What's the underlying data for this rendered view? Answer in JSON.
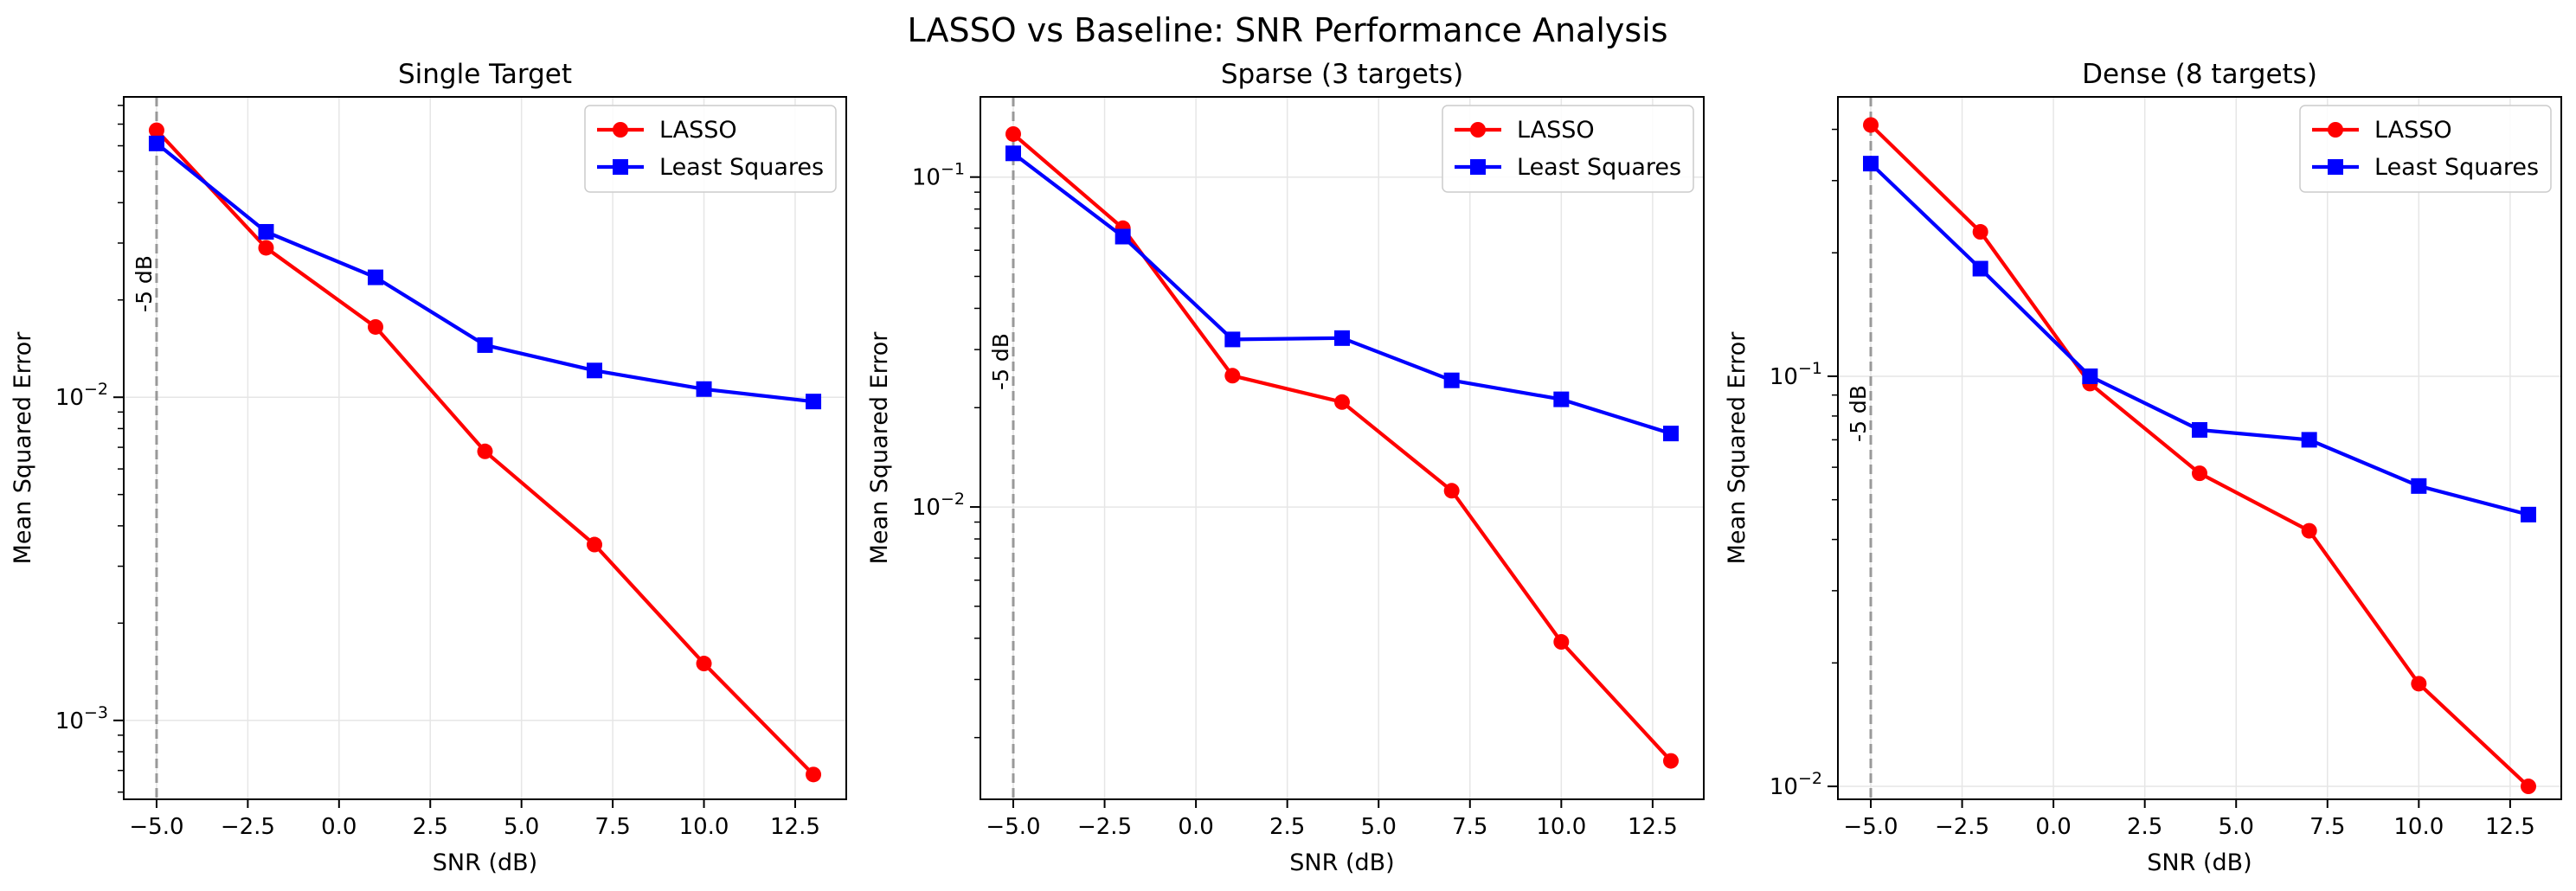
{
  "suptitle": "LASSO vs Baseline: SNR Performance Analysis",
  "colors": {
    "lasso": "#ff0000",
    "least_squares": "#0000ff",
    "ref_line": "#999999",
    "grid": "#e6e6e6"
  },
  "chart_data": [
    {
      "type": "line",
      "title": "Single Target",
      "xlabel": "SNR (dB)",
      "ylabel": "Mean Squared Error",
      "yscale": "log",
      "xlim": [
        -5.9,
        13.9
      ],
      "ylim": [
        0.00057,
        0.085
      ],
      "xticks": [
        -5.0,
        -2.5,
        0.0,
        2.5,
        5.0,
        7.5,
        10.0,
        12.5
      ],
      "xtick_labels": [
        "−5.0",
        "−2.5",
        "0.0",
        "2.5",
        "5.0",
        "7.5",
        "10.0",
        "12.5"
      ],
      "yticks": [
        {
          "value": 0.01,
          "base": "10",
          "exp": "−2"
        },
        {
          "value": 0.001,
          "base": "10",
          "exp": "−3"
        }
      ],
      "grid": true,
      "legend": "top-right",
      "ref_line": {
        "x": -5,
        "label": "-5 dB"
      },
      "x": [
        -5,
        -2,
        1,
        4,
        7,
        10,
        13
      ],
      "series": [
        {
          "name": "LASSO",
          "color": "#ff0000",
          "marker": "circle",
          "values": [
            0.067,
            0.029,
            0.0165,
            0.0068,
            0.0035,
            0.0015,
            0.00068
          ]
        },
        {
          "name": "Least Squares",
          "color": "#0000ff",
          "marker": "square",
          "values": [
            0.061,
            0.0325,
            0.0235,
            0.0145,
            0.0121,
            0.0106,
            0.0097
          ]
        }
      ]
    },
    {
      "type": "line",
      "title": "Sparse (3 targets)",
      "xlabel": "SNR (dB)",
      "ylabel": "Mean Squared Error",
      "yscale": "log",
      "xlim": [
        -5.9,
        13.9
      ],
      "ylim": [
        0.0013,
        0.175
      ],
      "xticks": [
        -5.0,
        -2.5,
        0.0,
        2.5,
        5.0,
        7.5,
        10.0,
        12.5
      ],
      "xtick_labels": [
        "−5.0",
        "−2.5",
        "0.0",
        "2.5",
        "5.0",
        "7.5",
        "10.0",
        "12.5"
      ],
      "yticks": [
        {
          "value": 0.1,
          "base": "10",
          "exp": "−1"
        },
        {
          "value": 0.01,
          "base": "10",
          "exp": "−2"
        }
      ],
      "grid": true,
      "legend": "top-right",
      "ref_line": {
        "x": -5,
        "label": "-5 dB"
      },
      "x": [
        -5,
        -2,
        1,
        4,
        7,
        10,
        13
      ],
      "series": [
        {
          "name": "LASSO",
          "color": "#ff0000",
          "marker": "circle",
          "values": [
            0.135,
            0.07,
            0.025,
            0.0208,
            0.0112,
            0.0039,
            0.0017
          ]
        },
        {
          "name": "Least Squares",
          "color": "#0000ff",
          "marker": "square",
          "values": [
            0.118,
            0.066,
            0.0322,
            0.0325,
            0.0242,
            0.0212,
            0.0167
          ]
        }
      ]
    },
    {
      "type": "line",
      "title": "Dense (8 targets)",
      "xlabel": "SNR (dB)",
      "ylabel": "Mean Squared Error",
      "yscale": "log",
      "xlim": [
        -5.9,
        13.9
      ],
      "ylim": [
        0.0093,
        0.48
      ],
      "xticks": [
        -5.0,
        -2.5,
        0.0,
        2.5,
        5.0,
        7.5,
        10.0,
        12.5
      ],
      "xtick_labels": [
        "−5.0",
        "−2.5",
        "0.0",
        "2.5",
        "5.0",
        "7.5",
        "10.0",
        "12.5"
      ],
      "yticks": [
        {
          "value": 0.1,
          "base": "10",
          "exp": "−1"
        },
        {
          "value": 0.01,
          "base": "10",
          "exp": "−2"
        }
      ],
      "grid": true,
      "legend": "top-right",
      "ref_line": {
        "x": -5,
        "label": "-5 dB"
      },
      "x": [
        -5,
        -2,
        1,
        4,
        7,
        10,
        13
      ],
      "series": [
        {
          "name": "LASSO",
          "color": "#ff0000",
          "marker": "circle",
          "values": [
            0.41,
            0.225,
            0.096,
            0.058,
            0.042,
            0.0178,
            0.01
          ]
        },
        {
          "name": "Least Squares",
          "color": "#0000ff",
          "marker": "square",
          "values": [
            0.33,
            0.183,
            0.1,
            0.074,
            0.07,
            0.054,
            0.046
          ]
        }
      ]
    }
  ]
}
